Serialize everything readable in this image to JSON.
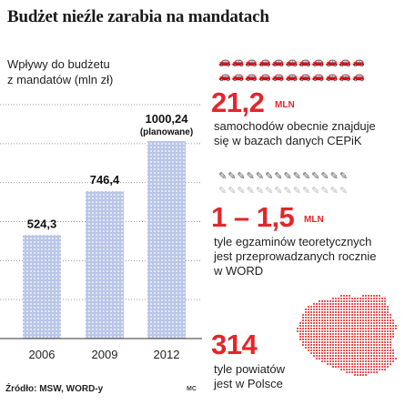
{
  "title": "Budżet nieźle zarabia na mandatach",
  "chart_data": {
    "type": "bar",
    "title": "Wpływy do budżetu z mandatów (mln zł)",
    "categories": [
      "2006",
      "2009",
      "2012"
    ],
    "values": [
      524.3,
      746.4,
      1000.24
    ],
    "value_labels": [
      "524,3",
      "746,4",
      "1000,24"
    ],
    "notes": [
      "",
      "",
      "(planowane)"
    ],
    "ylim": [
      0,
      1000.24
    ],
    "grid": true,
    "bar_color": "#b9c6e8",
    "dot_color": "#ffffff"
  },
  "chart_ylabel_line1": "Wpływy do budżetu",
  "chart_ylabel_line2": "z mandatów (mln zł)",
  "facts": [
    {
      "value": "21,2",
      "unit": "MLN",
      "desc_line1": "samochodów obecnie znajduje",
      "desc_line2": "się w bazach danych CEPiK",
      "icon": "car-icon"
    },
    {
      "value": "1 – 1,5",
      "unit": "MLN",
      "desc_line1": "tyle egzaminów teoretycznych",
      "desc_line2": "jest przeprowadzanych rocznie",
      "desc_line3": "w WORD",
      "icon": "pen-icon"
    },
    {
      "value": "314",
      "desc_line1": "tyle powiatów",
      "desc_line2": "jest w Polsce",
      "icon": "poland-map-icon"
    }
  ],
  "source": "Źródło: MSW, WORD-y",
  "author": "MC",
  "colors": {
    "accent": "#e3262b",
    "bar": "#b9c6e8",
    "map": "#e3262b"
  }
}
